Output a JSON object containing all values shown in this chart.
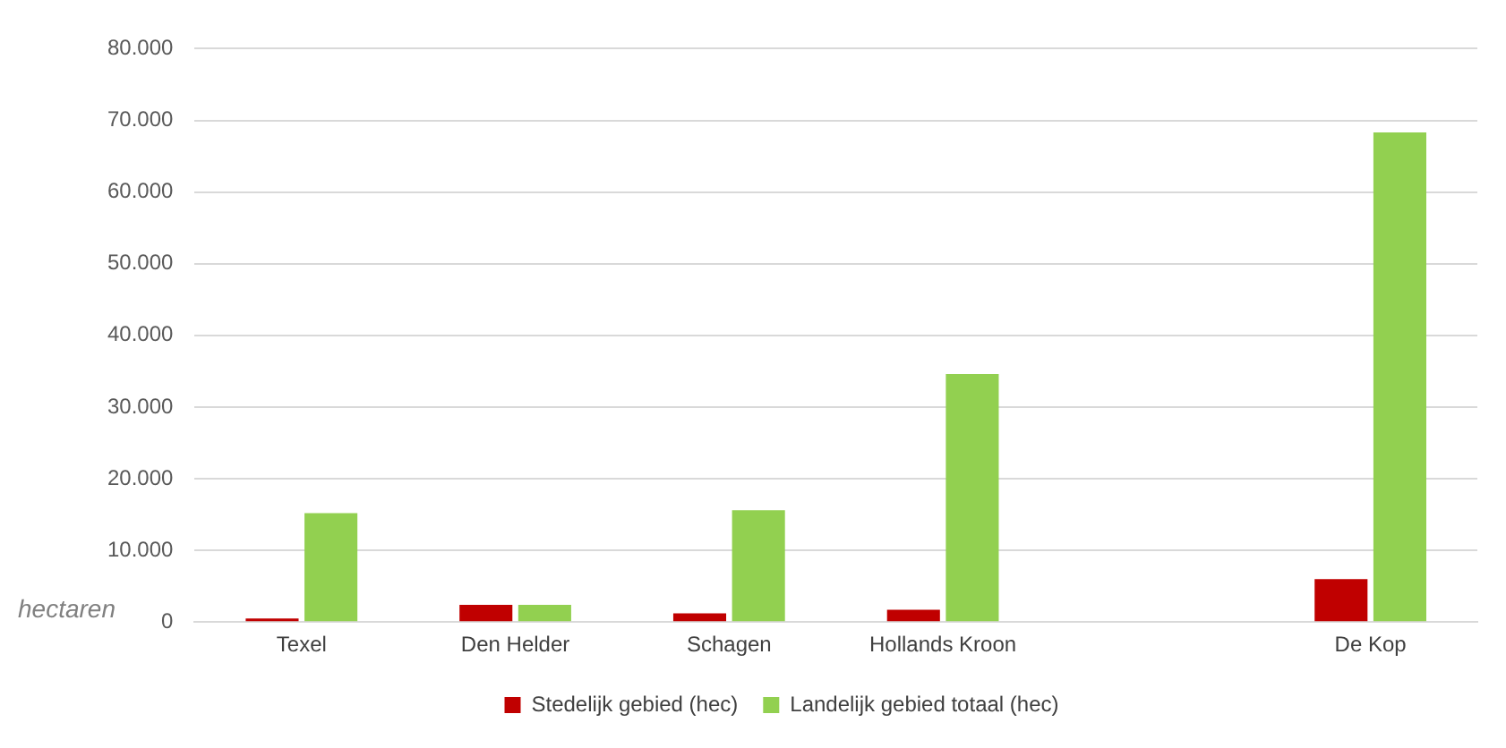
{
  "chart_data": {
    "type": "bar",
    "ylabel": "hectaren",
    "categories": [
      "Texel",
      "Den Helder",
      "Schagen",
      "Hollands Kroon",
      null,
      "De Kop"
    ],
    "series": [
      {
        "name": "Stedelijk gebied (hec)",
        "color": "#c00000",
        "values": [
          500,
          2400,
          1200,
          1700,
          null,
          6000
        ]
      },
      {
        "name": "Landelijk gebied totaal (hec)",
        "color": "#92d050",
        "values": [
          15200,
          2400,
          15600,
          34600,
          null,
          68300
        ]
      }
    ],
    "ylim": [
      0,
      80000
    ],
    "yticks": [
      {
        "value": 0,
        "label": "0"
      },
      {
        "value": 10000,
        "label": "10.000"
      },
      {
        "value": 20000,
        "label": "20.000"
      },
      {
        "value": 30000,
        "label": "30.000"
      },
      {
        "value": 40000,
        "label": "40.000"
      },
      {
        "value": 50000,
        "label": "50.000"
      },
      {
        "value": 60000,
        "label": "60.000"
      },
      {
        "value": 70000,
        "label": "70.000"
      },
      {
        "value": 80000,
        "label": "80.000"
      }
    ],
    "grid": "y",
    "legend": "bottom"
  }
}
